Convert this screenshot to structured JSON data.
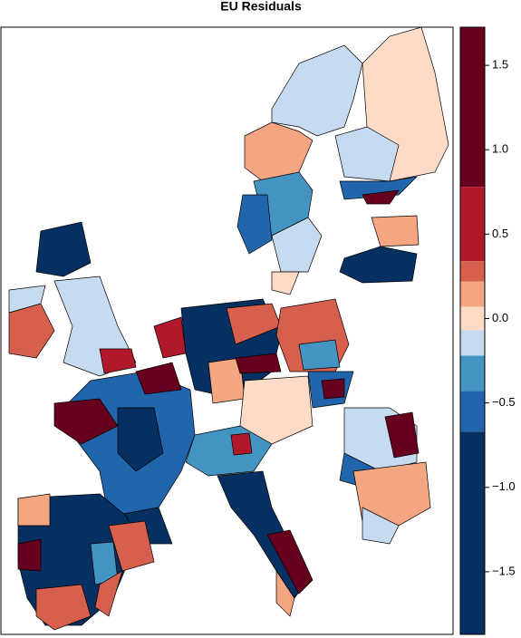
{
  "title": "EU Residuals",
  "colorbar": {
    "breaks": [
      1.726,
      0.78,
      0.34,
      0.22,
      0.07,
      -0.07,
      -0.22,
      -0.43,
      -0.67,
      -1.871
    ],
    "colors": [
      "#67001f",
      "#b2182b",
      "#d6604d",
      "#f4a582",
      "#fddbc7",
      "#c6dbef",
      "#4393c3",
      "#2166ac",
      "#053061"
    ],
    "lim": [
      -1.871,
      1.726
    ],
    "ticks": [
      1.5,
      {
        "value": 1,
        "label": "1.0"
      },
      0.5,
      {
        "value": 0,
        "label": "0.0"
      },
      {
        "value": -0.5,
        "label": "−0.5"
      },
      {
        "value": -1,
        "label": "−1.0"
      },
      {
        "value": -1.5,
        "label": "−1.5"
      }
    ]
  }
}
